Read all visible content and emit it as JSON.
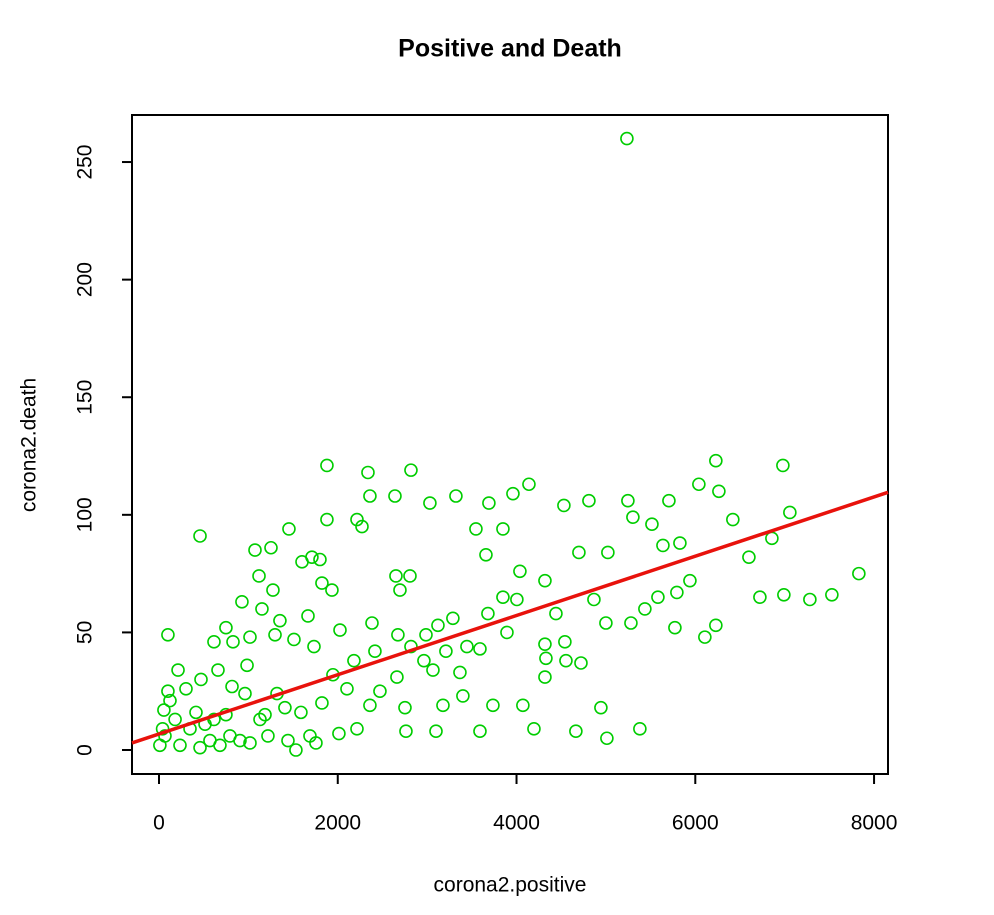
{
  "chart_data": {
    "type": "scatter",
    "title": "Positive and Death",
    "x_label": "corona2.positive",
    "y_label": "corona2.death",
    "xlim": [
      -302,
      8156
    ],
    "ylim": [
      -10.2,
      270
    ],
    "xticks": [
      0,
      2000,
      4000,
      6000,
      8000
    ],
    "yticks": [
      0,
      50,
      100,
      150,
      200,
      250
    ],
    "color": "#00cd00",
    "regression": {
      "intercept": 6.8,
      "slope": 0.0126,
      "color": "#e8120c"
    },
    "x": [
      5235,
      459,
      100,
      1879,
      2338,
      2819,
      6230,
      6980,
      4139,
      6040,
      3960,
      3322,
      3691,
      4810,
      5246,
      5705,
      3031,
      2640,
      2360,
      4530,
      6264,
      7058,
      6420,
      2215,
      1879,
      2271,
      3546,
      3848,
      1454,
      5302,
      5515,
      5022,
      4698,
      6857,
      5828,
      5638,
      3658,
      4038,
      4318,
      5940,
      6600,
      7830,
      1711,
      1801,
      1253,
      1074,
      1600,
      2651,
      2808,
      2696,
      1823,
      1935,
      1119,
      1275,
      6723,
      6991,
      7282,
      7528,
      5582,
      5794,
      4004,
      3848,
      4866,
      5772,
      6107,
      6230,
      5436,
      5280,
      5000,
      4441,
      3680,
      3121,
      3288,
      2673,
      2987,
      2383,
      2025,
      928,
      1152,
      1667,
      1353,
      749,
      615,
      828,
      1018,
      1298,
      1510,
      1734,
      2181,
      2416,
      2819,
      3210,
      3445,
      3591,
      3893,
      4318,
      4541,
      4329,
      4553,
      4721,
      4318,
      2964,
      3367,
      3065,
      2662,
      2472,
      3400,
      3736,
      4071,
      4944,
      3177,
      2752,
      2360,
      4195,
      4664,
      5380,
      5011,
      3591,
      3099,
      2763,
      2215,
      2013,
      2103,
      1946,
      1823,
      1588,
      1532,
      1756,
      1409,
      1320,
      1186,
      962,
      817,
      985,
      660,
      470,
      213,
      302,
      100,
      55,
      40,
      10,
      180,
      414,
      615,
      794,
      1018,
      1219,
      1443,
      1689,
      235,
      459,
      682,
      906,
      67,
      347,
      570,
      515,
      749,
      123,
      1130
    ],
    "values": [
      260,
      91,
      49,
      121,
      118,
      119,
      123,
      121,
      113,
      113,
      109,
      108,
      105,
      106,
      106,
      106,
      105,
      108,
      108,
      104,
      110,
      101,
      98,
      98,
      98,
      95,
      94,
      94,
      94,
      99,
      96,
      84,
      84,
      90,
      88,
      87,
      83,
      76,
      72,
      72,
      82,
      75,
      82,
      81,
      86,
      85,
      80,
      74,
      74,
      68,
      71,
      68,
      74,
      68,
      65,
      66,
      64,
      66,
      65,
      67,
      64,
      65,
      64,
      52,
      48,
      53,
      60,
      54,
      54,
      58,
      58,
      53,
      56,
      49,
      49,
      54,
      51,
      63,
      60,
      57,
      55,
      52,
      46,
      46,
      48,
      49,
      47,
      44,
      38,
      42,
      44,
      42,
      44,
      43,
      50,
      45,
      46,
      39,
      38,
      37,
      31,
      38,
      33,
      34,
      31,
      25,
      23,
      19,
      19,
      18,
      19,
      18,
      19,
      9,
      8,
      9,
      5,
      8,
      8,
      8,
      9,
      7,
      26,
      32,
      20,
      16,
      0,
      3,
      18,
      24,
      15,
      24,
      27,
      36,
      34,
      30,
      34,
      26,
      25,
      17,
      9,
      2,
      13,
      16,
      13,
      6,
      3,
      6,
      4,
      6,
      2,
      1,
      2,
      4,
      6,
      9,
      4,
      11,
      15,
      21,
      13
    ]
  }
}
